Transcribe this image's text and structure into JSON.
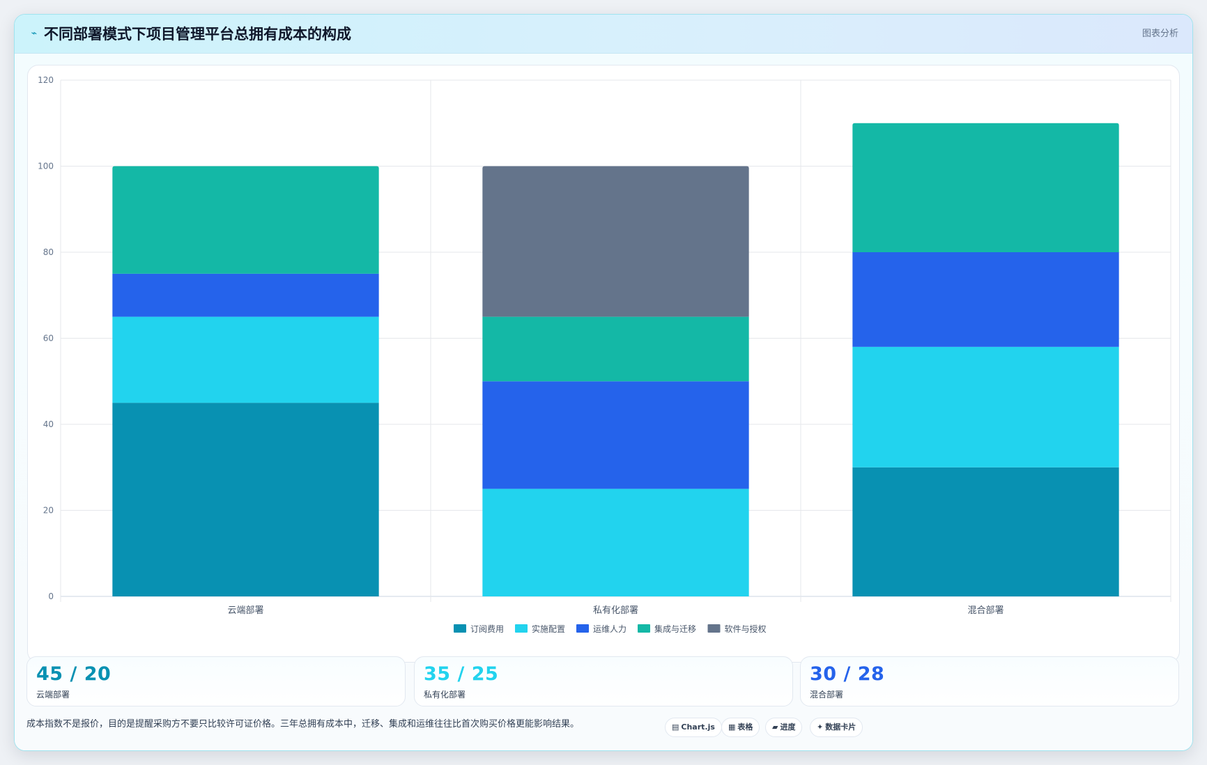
{
  "header": {
    "icon": "chart-line-icon",
    "title": "不同部署模式下项目管理平台总拥有成本的构成",
    "tag": "图表分析"
  },
  "colors": {
    "subscription": "#0891b2",
    "implementation": "#22d3ee",
    "operations": "#2563eb",
    "integration": "#14b8a6",
    "license": "#64748b"
  },
  "chart_data": {
    "type": "bar",
    "stacked": true,
    "title": "",
    "xlabel": "",
    "ylabel": "",
    "categories": [
      "云端部署",
      "私有化部署",
      "混合部署"
    ],
    "ylim": [
      0,
      120
    ],
    "yticks": [
      0,
      20,
      40,
      60,
      80,
      100,
      120
    ],
    "grid": true,
    "legend_position": "bottom",
    "series": [
      {
        "name": "订阅费用",
        "color": "#0891b2",
        "values": [
          45,
          0,
          30
        ]
      },
      {
        "name": "实施配置",
        "color": "#22d3ee",
        "values": [
          20,
          25,
          28
        ]
      },
      {
        "name": "运维人力",
        "color": "#2563eb",
        "values": [
          10,
          25,
          22
        ]
      },
      {
        "name": "集成与迁移",
        "color": "#14b8a6",
        "values": [
          25,
          15,
          30
        ]
      },
      {
        "name": "软件与授权",
        "color": "#64748b",
        "values": [
          0,
          35,
          0
        ]
      }
    ]
  },
  "stats": [
    {
      "value": "45 / 20",
      "label": "云端部署",
      "color": "#0891b2"
    },
    {
      "value": "35 / 25",
      "label": "私有化部署",
      "color": "#22d3ee"
    },
    {
      "value": "30 / 28",
      "label": "混合部署",
      "color": "#2563eb"
    }
  ],
  "footer": {
    "note": "成本指数不是报价，目的是提醒采购方不要只比较许可证价格。三年总拥有成本中，迁移、集成和运维往往比首次购买价格更能影响结果。",
    "chips": [
      {
        "icon": "chart-icon",
        "glyph": "▤",
        "label": "Chart.js"
      },
      {
        "icon": "table-icon",
        "glyph": "▦",
        "label": "表格"
      },
      {
        "icon": "progress-icon",
        "glyph": "▰",
        "label": "进度"
      },
      {
        "icon": "data-card-icon",
        "glyph": "✦",
        "label": "数据卡片"
      }
    ]
  }
}
